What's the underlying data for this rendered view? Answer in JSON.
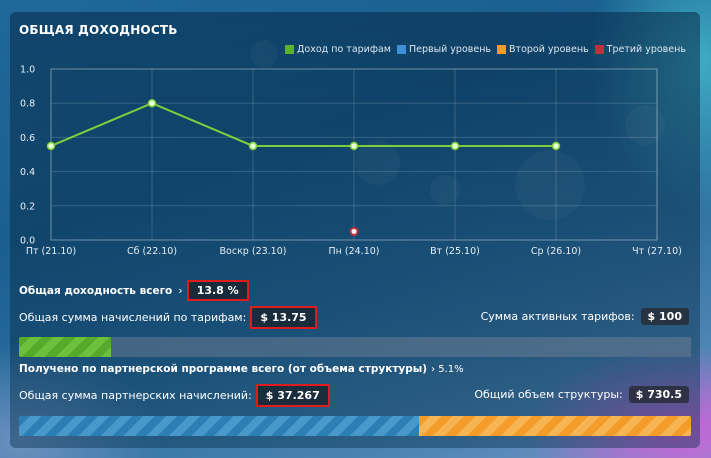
{
  "panel": {
    "title": "ОБЩАЯ ДОХОДНОСТЬ"
  },
  "legend": [
    {
      "label": "Доход по тарифам",
      "color": "#5bb132"
    },
    {
      "label": "Первый уровень",
      "color": "#3d8fd8"
    },
    {
      "label": "Второй уровень",
      "color": "#f29a2e"
    },
    {
      "label": "Третий уровень",
      "color": "#c0303a"
    }
  ],
  "chart_data": {
    "type": "line",
    "categories": [
      "Пт (21.10)",
      "Сб (22.10)",
      "Воскр (23.10)",
      "Пн (24.10)",
      "Вт (25.10)",
      "Ср (26.10)",
      "Чт (27.10)"
    ],
    "ylim": [
      0,
      1.0
    ],
    "yticks": [
      "0.0",
      "0.2",
      "0.4",
      "0.6",
      "0.8",
      "1.0"
    ],
    "grid": true,
    "legend_position": "top-right",
    "series": [
      {
        "name": "Доход по тарифам",
        "color": "#7fcf3c",
        "values": [
          0.55,
          0.8,
          0.55,
          0.55,
          0.55,
          0.55,
          null
        ]
      },
      {
        "name": "Третий уровень",
        "color": "#c0303a",
        "values": [
          null,
          null,
          null,
          0.05,
          null,
          null,
          null
        ]
      }
    ]
  },
  "summary": {
    "total_yield_label": "Общая доходность всего",
    "total_yield_arrow": "›",
    "total_yield_value": "13.8 %",
    "tariff_accruals_label": "Общая сумма начислений по тарифам:",
    "tariff_accruals_value": "$ 13.75",
    "active_tariffs_label": "Сумма активных тарифов:",
    "active_tariffs_value": "$ 100",
    "tariff_progress": 0.1375,
    "partner_total_label": "Получено по партнерской программе всего (от объема структуры)",
    "partner_total_value": "› 5.1%",
    "partner_accruals_label": "Общая сумма партнерских начислений:",
    "partner_accruals_value": "$ 37.267",
    "structure_volume_label": "Общий объем структуры:",
    "structure_volume_value": "$ 730.5",
    "partner_progress": {
      "blue": 0.595,
      "orange": 0.405
    }
  }
}
